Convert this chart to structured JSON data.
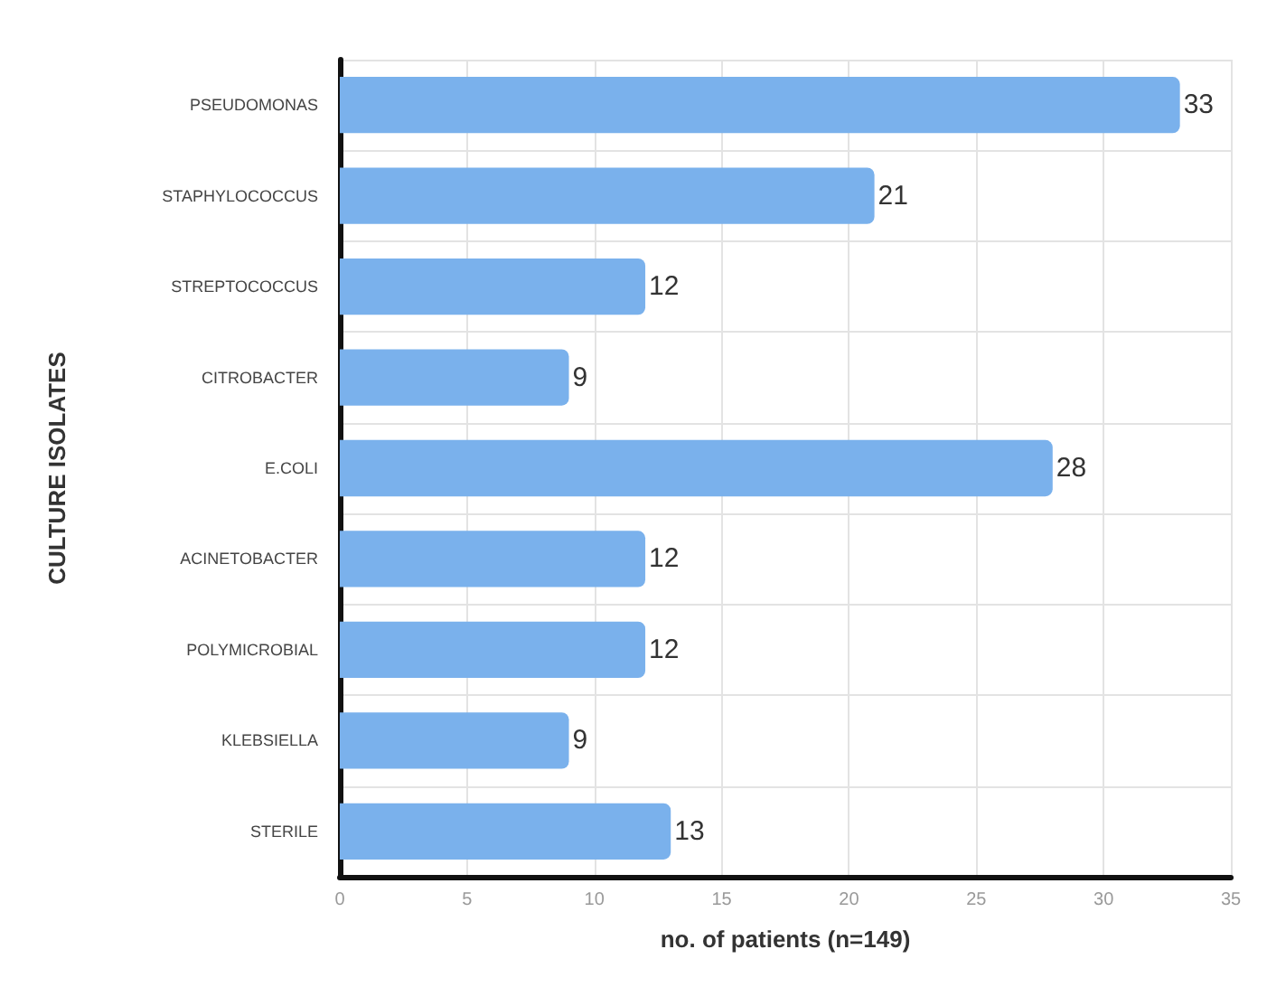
{
  "chart_data": {
    "type": "bar",
    "orientation": "horizontal",
    "ylabel": "CULTURE ISOLATES",
    "xlabel": "no. of patients (n=149)",
    "categories": [
      "PSEUDOMONAS",
      "STAPHYLOCOCCUS",
      "STREPTOCOCCUS",
      "CITROBACTER",
      "E.COLI",
      "ACINETOBACTER",
      "POLYMICROBIAL",
      "KLEBSIELLA",
      "STERILE"
    ],
    "values": [
      33,
      21,
      12,
      9,
      28,
      12,
      12,
      9,
      13
    ],
    "color": "#7ab1ec",
    "xlim": [
      0,
      35
    ],
    "xticks": [
      0,
      5,
      10,
      15,
      20,
      25,
      30,
      35
    ],
    "grid": true,
    "data_labels": true
  }
}
